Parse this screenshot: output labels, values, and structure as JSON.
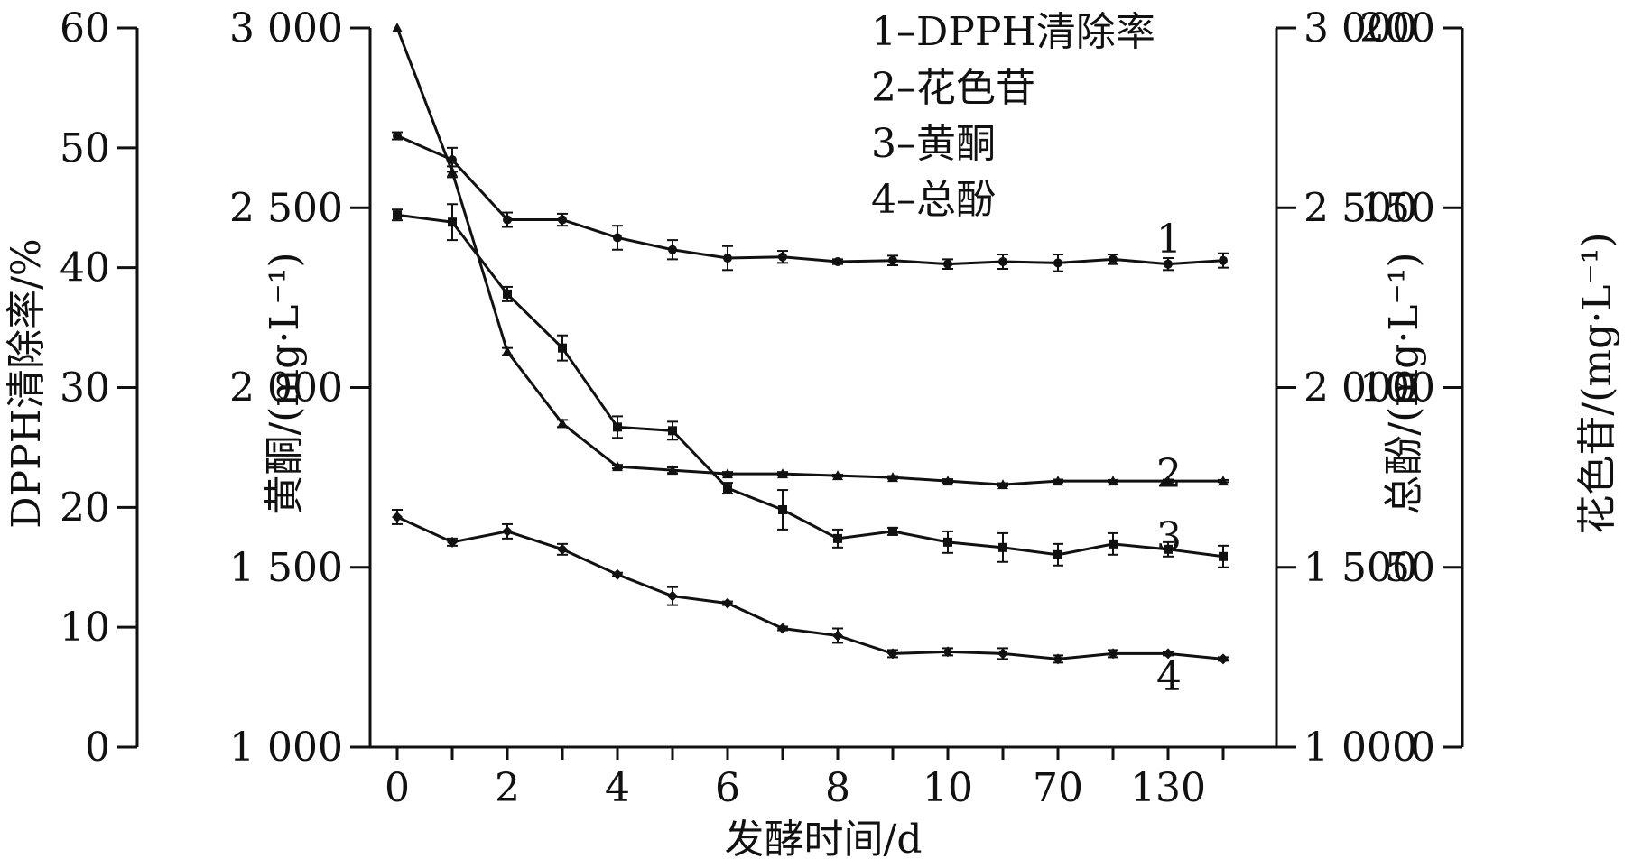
{
  "chart_data": {
    "type": "line",
    "xlabel": "发酵时间/d",
    "x_tick_labels": [
      "0",
      "",
      "2",
      "",
      "4",
      "",
      "6",
      "",
      "8",
      "",
      "10",
      "",
      "70",
      "",
      "130",
      ""
    ],
    "axes": {
      "dpph": {
        "label": "DPPH清除率/%",
        "ylim": [
          0,
          60
        ],
        "ticks": [
          "0",
          "10",
          "20",
          "30",
          "40",
          "50",
          "60"
        ]
      },
      "flavonoid": {
        "label": "黄酮/(mg·L⁻¹)",
        "ylim": [
          1000,
          3000
        ],
        "ticks": [
          "1 000",
          "1 500",
          "2 000",
          "2 500",
          "3 000"
        ]
      },
      "phenol": {
        "label": "总酚/(mg·L⁻¹)",
        "ylim": [
          1000,
          3000
        ],
        "ticks": [
          "1 000",
          "1 500",
          "2 000",
          "2 500",
          "3 000"
        ]
      },
      "anthocyanin": {
        "label": "花色苷/(mg·L⁻¹)",
        "ylim": [
          0,
          200
        ],
        "ticks": [
          "0",
          "50",
          "100",
          "150",
          "200"
        ]
      }
    },
    "legend": [
      "1–DPPH清除率",
      "2–花色苷",
      "3–黄酮",
      "4–总酚"
    ],
    "legend_position": "top-right",
    "series": [
      {
        "name": "1–DPPH清除率",
        "label": "1",
        "axis": "dpph",
        "marker": "circle",
        "values": [
          51,
          49,
          44,
          44,
          42.5,
          41.5,
          40.8,
          40.9,
          40.5,
          40.6,
          40.3,
          40.5,
          40.4,
          40.7,
          40.3,
          40.6
        ],
        "errors": [
          0.3,
          1.0,
          0.6,
          0.5,
          1.0,
          0.8,
          1.0,
          0.5,
          0.2,
          0.4,
          0.4,
          0.6,
          0.7,
          0.4,
          0.5,
          0.6
        ]
      },
      {
        "name": "2–花色苷",
        "label": "2",
        "axis": "anthocyanin",
        "marker": "triangle",
        "values": [
          200,
          160,
          110,
          90,
          78,
          77,
          76,
          76,
          75.5,
          75,
          74,
          73,
          74,
          74,
          74,
          74
        ],
        "errors": [
          0,
          1.5,
          1.0,
          1.0,
          0.5,
          0.8,
          0.5,
          0.5,
          0.3,
          0.4,
          0.5,
          0.4,
          0.4,
          0.3,
          0.4,
          0.3
        ]
      },
      {
        "name": "3–黄酮",
        "label": "3",
        "axis": "flavonoid",
        "marker": "square",
        "values": [
          2480,
          2460,
          2260,
          2110,
          1890,
          1880,
          1720,
          1660,
          1580,
          1600,
          1570,
          1555,
          1535,
          1565,
          1550,
          1530
        ],
        "errors": [
          15,
          50,
          20,
          35,
          30,
          25,
          15,
          55,
          25,
          10,
          30,
          40,
          30,
          30,
          20,
          30
        ]
      },
      {
        "name": "4–总酚",
        "label": "4",
        "axis": "phenol",
        "marker": "diamond",
        "values": [
          1640,
          1570,
          1600,
          1550,
          1480,
          1420,
          1400,
          1330,
          1310,
          1260,
          1265,
          1260,
          1245,
          1260,
          1260,
          1245
        ],
        "errors": [
          20,
          10,
          20,
          15,
          5,
          25,
          5,
          5,
          20,
          10,
          10,
          15,
          10,
          10,
          5,
          5
        ]
      }
    ]
  }
}
